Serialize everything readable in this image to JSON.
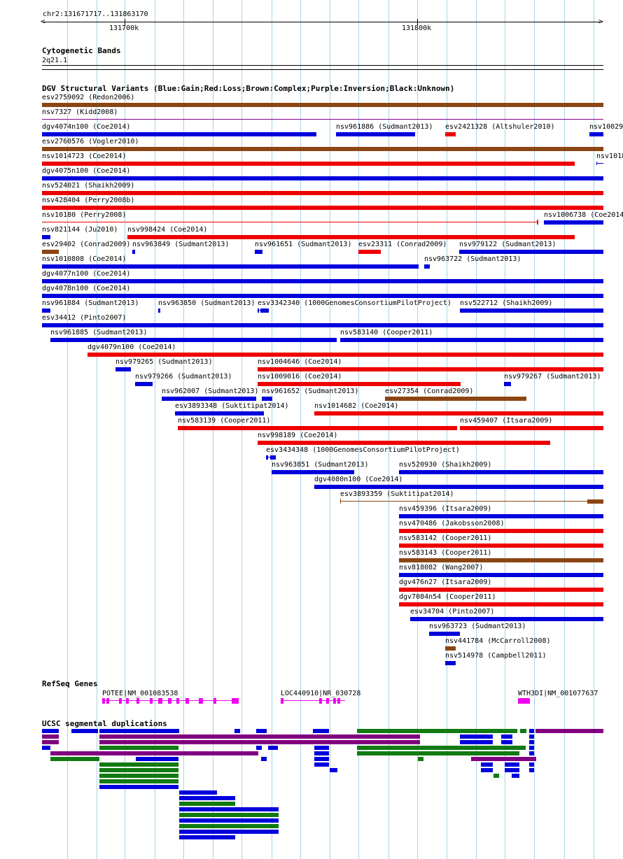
{
  "ruler": {
    "location": "chr2:131671717..131863170",
    "ticks": [
      {
        "label": "131700k",
        "x": 131700
      },
      {
        "label": "131800k",
        "x": 131800
      }
    ]
  },
  "cytoband": {
    "title": "Cytogenetic Bands",
    "band": "2q21.1"
  },
  "dgv": {
    "title": "DGV Structural Variants (Blue:Gain;Red:Loss;Brown:Complex;Purple:Inversion;Black:Unknown)",
    "colors": {
      "blue": "#0000dd",
      "red": "#ee0000",
      "brown": "#8b4513",
      "purple": "#800080"
    },
    "rows": [
      [
        {
          "name": "esv2759092 (Redon2006)",
          "c": "brown",
          "s": [
            [
              60,
              862
            ]
          ]
        }
      ],
      [
        {
          "name": "nsv7327 (Kidd2008)",
          "c": "purple",
          "thin": true,
          "s": [
            [
              60,
              862
            ]
          ]
        }
      ],
      [
        {
          "name": "dgv4074n100 (Coe2014)",
          "c": "blue",
          "s": [
            [
              60,
              452
            ]
          ]
        },
        {
          "name": "nsv961886 (Sudmant2013)",
          "c": "blue",
          "s": [
            [
              480,
              593
            ]
          ]
        },
        {
          "name": "esv2421328 (Altshuler2010)",
          "c": "red",
          "s": [
            [
              636,
              651
            ]
          ]
        },
        {
          "name": "nsv10029",
          "c": "blue",
          "s": [
            [
              842,
              862
            ]
          ]
        }
      ],
      [
        {
          "name": "esv2760576 (Vogler2010)",
          "c": "brown",
          "s": [
            [
              60,
              862
            ]
          ]
        }
      ],
      [
        {
          "name": "nsv1014723 (Coe2014)",
          "c": "red",
          "s": [
            [
              60,
              821
            ]
          ]
        },
        {
          "name": "nsv1018",
          "c": "blue",
          "tick": true,
          "s": [
            [
              852,
              862
            ]
          ]
        }
      ],
      [
        {
          "name": "dgv4075n100 (Coe2014)",
          "c": "blue",
          "s": [
            [
              60,
              862
            ]
          ]
        }
      ],
      [
        {
          "name": "nsv524021 (Shaikh2009)",
          "c": "red",
          "s": [
            [
              60,
              862
            ]
          ]
        }
      ],
      [
        {
          "name": "nsv428404 (Perry2008b)",
          "c": "red",
          "s": [
            [
              60,
              862
            ]
          ]
        }
      ],
      [
        {
          "name": "nsv10180 (Perry2008)",
          "c": "red",
          "thin": true,
          "s": [
            [
              60,
              768
            ]
          ]
        },
        {
          "name": "nsv1006738 (Coe2014)",
          "c": "blue",
          "s": [
            [
              777,
              862
            ]
          ]
        }
      ],
      [
        {
          "name": "nsv821144 (Ju2010)",
          "c": "blue",
          "s": [
            [
              60,
              72
            ]
          ]
        },
        {
          "name": "nsv998424 (Coe2014)",
          "c": "red",
          "s": [
            [
              182,
              821
            ]
          ]
        }
      ],
      [
        {
          "name": "esv29402 (Conrad2009)",
          "c": "brown",
          "s": [
            [
              60,
              84
            ]
          ]
        },
        {
          "name": "nsv963849 (Sudmant2013)",
          "c": "blue",
          "s": [
            [
              189,
              193
            ]
          ]
        },
        {
          "name": "nsv961651 (Sudmant2013)",
          "c": "blue",
          "s": [
            [
              364,
              375
            ]
          ]
        },
        {
          "name": "esv23311 (Conrad2009)",
          "c": "red",
          "s": [
            [
              512,
              544
            ]
          ]
        },
        {
          "name": "nsv979122 (Sudmant2013)",
          "c": "blue",
          "s": [
            [
              656,
              862
            ]
          ]
        }
      ],
      [
        {
          "name": "nsv1010808 (Coe2014)",
          "c": "blue",
          "s": [
            [
              60,
              598
            ]
          ]
        },
        {
          "name": "nsv963722 (Sudmant2013)",
          "c": "blue",
          "s": [
            [
              606,
              614
            ]
          ]
        }
      ],
      [
        {
          "name": "dgv4077n100 (Coe2014)",
          "c": "blue",
          "s": [
            [
              60,
              862
            ]
          ]
        }
      ],
      [
        {
          "name": "dgv4078n100 (Coe2014)",
          "c": "blue",
          "s": [
            [
              60,
              862
            ]
          ]
        }
      ],
      [
        {
          "name": "nsv961884 (Sudmant2013)",
          "c": "blue",
          "s": [
            [
              60,
              72
            ]
          ]
        },
        {
          "name": "nsv963850 (Sudmant2013)",
          "c": "blue",
          "s": [
            [
              226,
              229
            ]
          ]
        },
        {
          "name": "esv3342340 (1000GenomesConsortiumPilotProject)",
          "c": "blue",
          "s": [
            [
              368,
              370
            ],
            [
              372,
              384
            ]
          ]
        },
        {
          "name": "nsv522712 (Shaikh2009)",
          "c": "blue",
          "s": [
            [
              657,
              862
            ]
          ]
        }
      ],
      [
        {
          "name": "esv34412 (Pinto2007)",
          "c": "blue",
          "s": [
            [
              60,
              862
            ]
          ]
        }
      ],
      [
        {
          "name": "nsv961885 (Sudmant2013)",
          "c": "blue",
          "s": [
            [
              72,
              481
            ]
          ]
        },
        {
          "name": "nsv583140 (Cooper2011)",
          "c": "blue",
          "s": [
            [
              486,
              862
            ]
          ]
        }
      ],
      [
        {
          "name": "dgv4079n100 (Coe2014)",
          "c": "red",
          "s": [
            [
              125,
              862
            ]
          ]
        }
      ],
      [
        {
          "name": "nsv979265 (Sudmant2013)",
          "c": "blue",
          "s": [
            [
              165,
              187
            ]
          ]
        },
        {
          "name": "nsv1004646 (Coe2014)",
          "c": "red",
          "s": [
            [
              368,
              862
            ]
          ]
        }
      ],
      [
        {
          "name": "nsv979266 (Sudmant2013)",
          "c": "blue",
          "s": [
            [
              193,
              218
            ]
          ]
        },
        {
          "name": "nsv1009016 (Coe2014)",
          "c": "red",
          "s": [
            [
              368,
              658
            ]
          ]
        },
        {
          "name": "nsv979267 (Sudmant2013)",
          "c": "blue",
          "s": [
            [
              720,
              730
            ]
          ]
        }
      ],
      [
        {
          "name": "nsv962007 (Sudmant2013)",
          "c": "blue",
          "s": [
            [
              231,
              366
            ]
          ]
        },
        {
          "name": "nsv961652 (Sudmant2013)",
          "c": "blue",
          "s": [
            [
              374,
              389
            ]
          ]
        },
        {
          "name": "esv27354 (Conrad2009)",
          "c": "brown",
          "s": [
            [
              550,
              752
            ]
          ]
        }
      ],
      [
        {
          "name": "esv3893348 (Suktitipat2014)",
          "c": "blue",
          "s": [
            [
              250,
              377
            ]
          ]
        },
        {
          "name": "nsv1014682 (Coe2014)",
          "c": "red",
          "s": [
            [
              449,
              862
            ]
          ]
        }
      ],
      [
        {
          "name": "nsv583139 (Cooper2011)",
          "c": "red",
          "s": [
            [
              254,
              653
            ]
          ]
        },
        {
          "name": "nsv459407 (Itsara2009)",
          "c": "red",
          "s": [
            [
              657,
              862
            ]
          ]
        }
      ],
      [
        {
          "name": "nsv998189 (Coe2014)",
          "c": "red",
          "s": [
            [
              368,
              786
            ]
          ]
        }
      ],
      [
        {
          "name": "esv3434348 (1000GenomesConsortiumPilotProject)",
          "c": "blue",
          "s": [
            [
              380,
              383
            ],
            [
              386,
              394
            ]
          ]
        }
      ],
      [
        {
          "name": "nsv963851 (Sudmant2013)",
          "c": "blue",
          "s": [
            [
              388,
              506
            ]
          ]
        },
        {
          "name": "nsv520930 (Shaikh2009)",
          "c": "blue",
          "s": [
            [
              570,
              862
            ]
          ]
        }
      ],
      [
        {
          "name": "dgv4080n100 (Coe2014)",
          "c": "blue",
          "s": [
            [
              449,
              862
            ]
          ]
        }
      ],
      [
        {
          "name": "esv3893359 (Suktitipat2014)",
          "c": "brown",
          "thin": true,
          "s": [
            [
              486,
              839
            ]
          ],
          "end": [
            839,
            862
          ]
        }
      ],
      [
        {
          "name": "nsv459396 (Itsara2009)",
          "c": "blue",
          "s": [
            [
              570,
              862
            ]
          ]
        }
      ],
      [
        {
          "name": "nsv470486 (Jakobsson2008)",
          "c": "red",
          "s": [
            [
              570,
              862
            ]
          ]
        }
      ],
      [
        {
          "name": "nsv583142 (Cooper2011)",
          "c": "red",
          "s": [
            [
              570,
              862
            ]
          ]
        }
      ],
      [
        {
          "name": "nsv583143 (Cooper2011)",
          "c": "brown",
          "s": [
            [
              570,
              862
            ]
          ]
        }
      ],
      [
        {
          "name": "nsv818082 (Wang2007)",
          "c": "blue",
          "s": [
            [
              570,
              862
            ]
          ]
        }
      ],
      [
        {
          "name": "dgv476n27 (Itsara2009)",
          "c": "red",
          "s": [
            [
              570,
              862
            ]
          ]
        }
      ],
      [
        {
          "name": "dgv7084n54 (Cooper2011)",
          "c": "red",
          "s": [
            [
              570,
              862
            ]
          ]
        }
      ],
      [
        {
          "name": "esv34704 (Pinto2007)",
          "c": "blue",
          "s": [
            [
              586,
              862
            ]
          ]
        }
      ],
      [
        {
          "name": "nsv963723 (Sudmant2013)",
          "c": "blue",
          "s": [
            [
              613,
              657
            ]
          ]
        }
      ],
      [
        {
          "name": "nsv441784 (McCarroll2008)",
          "c": "brown",
          "s": [
            [
              636,
              651
            ]
          ]
        }
      ],
      [
        {
          "name": "nsv514978 (Campbell2011)",
          "c": "blue",
          "s": [
            [
              636,
              651
            ]
          ]
        }
      ]
    ]
  },
  "refseq": {
    "title": "RefSeq Genes",
    "color": "#ee00ee",
    "genes": [
      {
        "name": "POTEE|NM_001083538",
        "lx": 146,
        "intron": [
          146,
          340
        ],
        "exons": [
          [
            146,
            150
          ],
          [
            152,
            156
          ],
          [
            170,
            174
          ],
          [
            180,
            184
          ],
          [
            195,
            199
          ],
          [
            214,
            218
          ],
          [
            226,
            232
          ],
          [
            240,
            245
          ],
          [
            252,
            256
          ],
          [
            265,
            270
          ],
          [
            284,
            290
          ],
          [
            305,
            309
          ],
          [
            331,
            341
          ]
        ]
      },
      {
        "name": "LOC440910|NR_030728",
        "lx": 401,
        "intron": [
          401,
          493
        ],
        "exons": [
          [
            401,
            405
          ],
          [
            456,
            460
          ],
          [
            466,
            470
          ],
          [
            476,
            480
          ],
          [
            482,
            486
          ]
        ]
      },
      {
        "name": "WTH3DI|NM_001077637",
        "lx": 740,
        "intron": [
          740,
          757
        ],
        "exons": [
          [
            740,
            757
          ]
        ]
      }
    ]
  },
  "segdups": {
    "title": "UCSC segmental duplications",
    "colors": {
      "b": "#0000dd",
      "p": "#800080",
      "g": "#117a11"
    },
    "rows": [
      [
        [
          "b",
          60,
          84
        ],
        [
          "b",
          102,
          140
        ],
        [
          "b",
          142,
          256
        ],
        [
          "b",
          335,
          343
        ],
        [
          "b",
          366,
          381
        ],
        [
          "b",
          447,
          470
        ],
        [
          "g",
          510,
          739
        ],
        [
          "g",
          743,
          752
        ],
        [
          "b",
          756,
          763
        ],
        [
          "p",
          765,
          862
        ]
      ],
      [
        [
          "p",
          60,
          84
        ],
        [
          "p",
          142,
          600
        ],
        [
          "b",
          657,
          704
        ],
        [
          "b",
          716,
          732
        ],
        [
          "b",
          756,
          763
        ]
      ],
      [
        [
          "p",
          60,
          84
        ],
        [
          "p",
          142,
          600
        ],
        [
          "b",
          657,
          704
        ],
        [
          "b",
          716,
          732
        ],
        [
          "b",
          756,
          763
        ]
      ],
      [
        [
          "b",
          60,
          72
        ],
        [
          "g",
          142,
          255
        ],
        [
          "b",
          366,
          374
        ],
        [
          "b",
          383,
          397
        ],
        [
          "b",
          449,
          470
        ],
        [
          "g",
          510,
          751
        ],
        [
          "b",
          756,
          763
        ]
      ],
      [
        [
          "p",
          72,
          369
        ],
        [
          "b",
          449,
          470
        ],
        [
          "g",
          510,
          742
        ],
        [
          "b",
          756,
          763
        ]
      ],
      [
        [
          "g",
          72,
          142
        ],
        [
          "b",
          194,
          255
        ],
        [
          "b",
          373,
          381
        ],
        [
          "b",
          449,
          470
        ],
        [
          "g",
          597,
          605
        ],
        [
          "p",
          673,
          766
        ]
      ],
      [
        [
          "g",
          142,
          255
        ],
        [
          "b",
          449,
          470
        ],
        [
          "b",
          687,
          704
        ],
        [
          "b",
          721,
          742
        ],
        [
          "b",
          756,
          763
        ]
      ],
      [
        [
          "g",
          142,
          255
        ],
        [
          "b",
          471,
          482
        ],
        [
          "b",
          687,
          704
        ],
        [
          "b",
          721,
          742
        ],
        [
          "b",
          756,
          763
        ]
      ],
      [
        [
          "g",
          142,
          255
        ],
        [
          "g",
          705,
          713
        ],
        [
          "b",
          731,
          742
        ]
      ],
      [
        [
          "g",
          142,
          255
        ]
      ],
      [
        [
          "b",
          142,
          255
        ]
      ],
      [
        [
          "b",
          256,
          310
        ]
      ],
      [
        [
          "b",
          256,
          336
        ]
      ],
      [
        [
          "g",
          256,
          336
        ]
      ],
      [
        [
          "b",
          256,
          398
        ]
      ],
      [
        [
          "g",
          256,
          398
        ]
      ],
      [
        [
          "b",
          256,
          398
        ]
      ],
      [
        [
          "g",
          256,
          398
        ]
      ],
      [
        [
          "b",
          256,
          398
        ]
      ],
      [
        [
          "b",
          256,
          336
        ]
      ]
    ]
  }
}
